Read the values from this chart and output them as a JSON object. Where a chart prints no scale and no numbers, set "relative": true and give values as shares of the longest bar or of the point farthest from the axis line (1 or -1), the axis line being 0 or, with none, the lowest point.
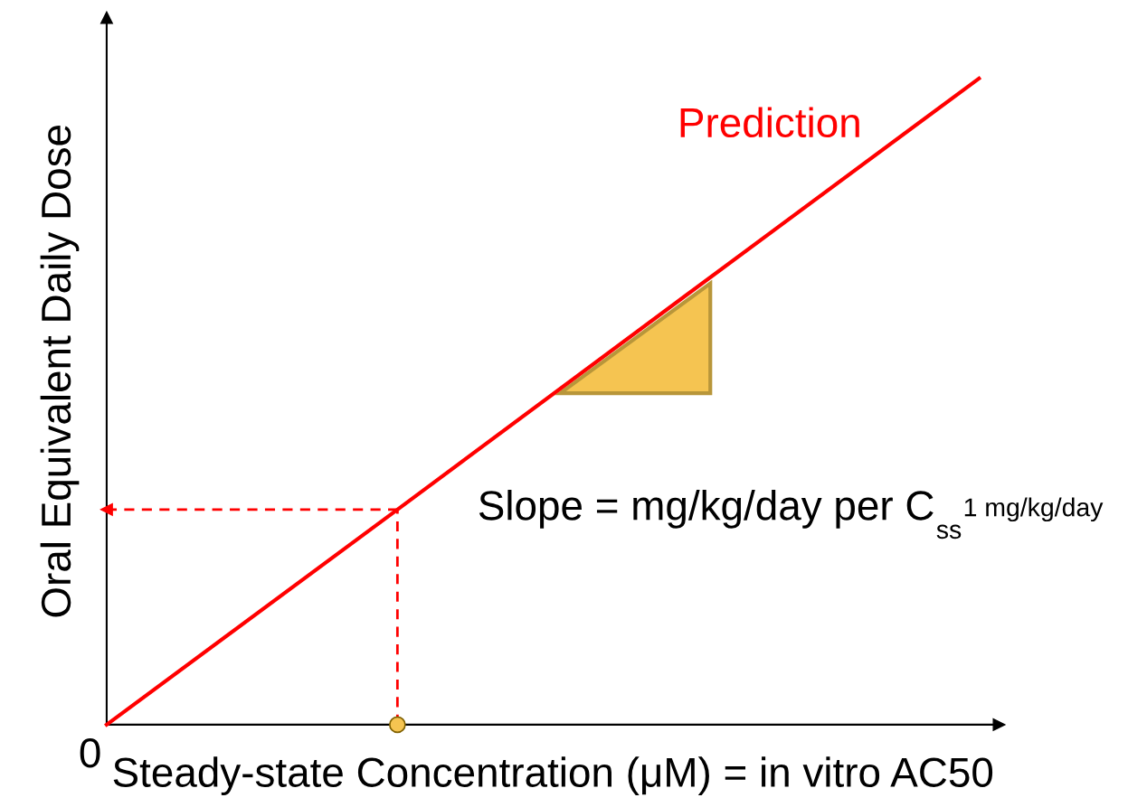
{
  "chart_data": {
    "type": "line",
    "relative": true,
    "xlabel": "Steady-state Concentration (μM) = in vitro AC50",
    "ylabel": "Oral Equivalent Daily Dose",
    "categories": [
      null,
      null,
      null,
      null
    ],
    "annotations": [
      "0",
      "Slope = mg/kg/day per C$_{ss}$$^{1 mg/kg/day}$"
    ],
    "series": [
      {
        "name": "Prediction",
        "color": "#ff0000",
        "values": [
          0,
          0.333,
          0.667,
          1
        ]
      },
      {
        "type": "line",
        "color": "#ff0000",
        "line_style": "dashed",
        "values": [
          0.333,
          0.333,
          null,
          null
        ]
      }
    ]
  }
}
